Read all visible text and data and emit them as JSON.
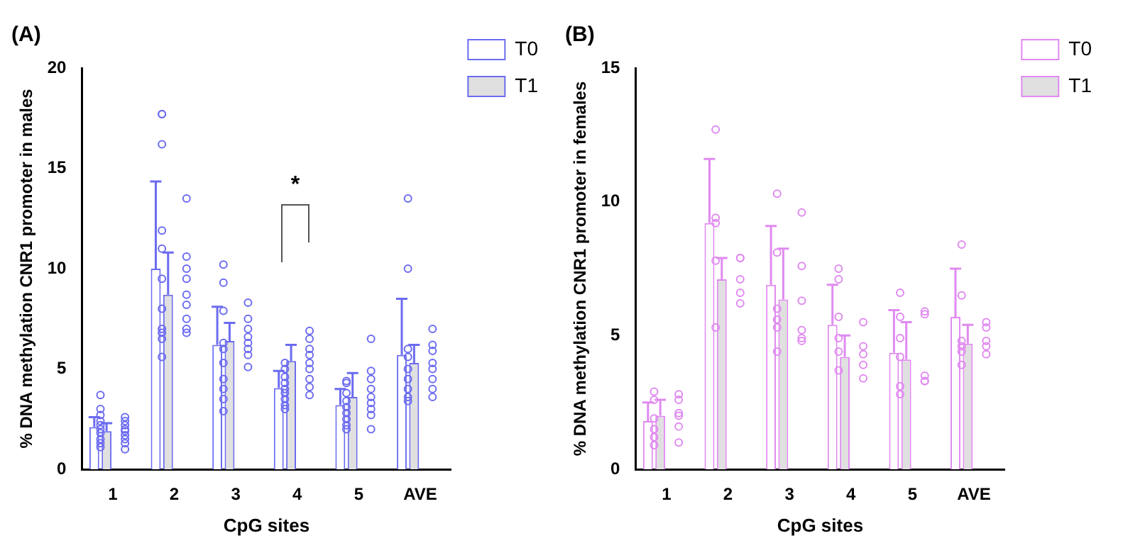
{
  "chart_data": [
    {
      "type": "bar",
      "title": "(A)",
      "xlabel": "CpG sites",
      "ylabel": "% DNA methylation CNR1 promoter in males",
      "categories": [
        "1",
        "2",
        "3",
        "4",
        "5",
        "AVE"
      ],
      "ylim": [
        0,
        20
      ],
      "yticks": [
        0,
        5,
        10,
        15,
        20
      ],
      "legend": "right",
      "annotations": [
        "*"
      ],
      "series": [
        {
          "name": "T0",
          "color": "#ffffff",
          "values": [
            2.1,
            10.0,
            6.2,
            4.05,
            3.2,
            5.7
          ],
          "errors": [
            [
              2.1,
              2.6
            ],
            [
              10.0,
              14.35
            ],
            [
              6.2,
              8.1
            ],
            [
              4.05,
              4.9
            ],
            [
              3.2,
              4.0
            ],
            [
              5.7,
              8.5
            ]
          ]
        },
        {
          "name": "T1",
          "color": "#e0e0e0",
          "values": [
            1.9,
            8.7,
            6.4,
            5.4,
            3.6,
            5.3
          ],
          "errors": [
            [
              1.9,
              2.3
            ],
            [
              8.7,
              10.8
            ],
            [
              6.4,
              7.3
            ],
            [
              5.4,
              6.2
            ],
            [
              3.6,
              4.8
            ],
            [
              5.3,
              6.2
            ]
          ]
        },
        {
          "type": "scatter",
          "color": "#6b6bf0",
          "marker": "circle",
          "x": [
            "1",
            "1",
            "1",
            "1",
            "1",
            "1",
            "1",
            "1",
            "1",
            "1",
            "2",
            "2",
            "2",
            "2",
            "2",
            "2",
            "2",
            "2",
            "2",
            "2",
            "2",
            "3",
            "3",
            "3",
            "3",
            "3",
            "3",
            "3",
            "3",
            "3",
            "3",
            "4",
            "4",
            "4",
            "4",
            "4",
            "4",
            "4",
            "4",
            "4",
            "5",
            "5",
            "5",
            "5",
            "5",
            "5",
            "5",
            "5",
            "5",
            "AVE",
            "AVE",
            "AVE",
            "AVE",
            "AVE",
            "AVE",
            "AVE",
            "AVE",
            "AVE"
          ],
          "values": [
            3.7,
            3.0,
            2.7,
            2.4,
            2.2,
            2.0,
            1.8,
            1.5,
            1.3,
            1.1,
            17.7,
            17.7,
            16.2,
            11.9,
            11.0,
            9.5,
            8.0,
            7.0,
            6.8,
            6.5,
            5.6,
            10.2,
            9.3,
            7.9,
            6.3,
            6.0,
            5.3,
            4.5,
            4.0,
            3.5,
            2.9,
            5.3,
            5.0,
            4.6,
            4.3,
            4.0,
            3.8,
            3.5,
            3.2,
            3.0,
            4.4,
            4.3,
            3.8,
            3.4,
            3.1,
            2.8,
            2.5,
            2.2,
            2.0,
            13.5,
            10.0,
            6.0,
            5.6,
            5.0,
            4.5,
            4.0,
            3.6,
            3.4
          ]
        },
        {
          "type": "scatter",
          "color": "#6b6bf0",
          "marker": "circle",
          "x": [
            "1",
            "1",
            "1",
            "1",
            "1",
            "1",
            "1",
            "1",
            "1",
            "2",
            "2",
            "2",
            "2",
            "2",
            "2",
            "2",
            "2",
            "2",
            "3",
            "3",
            "3",
            "3",
            "3",
            "3",
            "3",
            "3",
            "4",
            "4",
            "4",
            "4",
            "4",
            "4",
            "4",
            "4",
            "4",
            "5",
            "5",
            "5",
            "5",
            "5",
            "5",
            "5",
            "5",
            "5",
            "AVE",
            "AVE",
            "AVE",
            "AVE",
            "AVE",
            "AVE",
            "AVE",
            "AVE"
          ],
          "values": [
            2.6,
            2.4,
            2.2,
            2.0,
            1.9,
            1.7,
            1.5,
            1.3,
            1.0,
            13.5,
            10.6,
            10.0,
            9.5,
            8.7,
            8.2,
            7.5,
            7.0,
            6.8,
            8.3,
            7.5,
            7.0,
            6.6,
            6.3,
            6.0,
            5.7,
            5.1,
            6.9,
            6.5,
            6.0,
            5.7,
            5.3,
            5.0,
            4.5,
            4.1,
            3.7,
            6.5,
            4.9,
            4.5,
            4.0,
            3.6,
            3.3,
            3.0,
            2.7,
            2.0,
            7.0,
            6.2,
            5.9,
            5.3,
            5.0,
            4.5,
            4.0,
            3.6
          ]
        }
      ]
    },
    {
      "type": "bar",
      "title": "(B)",
      "xlabel": "CpG sites",
      "ylabel": "% DNA methylation CNR1 promoter in females",
      "categories": [
        "1",
        "2",
        "3",
        "4",
        "5",
        "AVE"
      ],
      "ylim": [
        0,
        15
      ],
      "yticks": [
        0,
        5,
        10,
        15
      ],
      "legend": "right",
      "series": [
        {
          "name": "T0",
          "color": "#ffffff",
          "values": [
            1.8,
            9.2,
            6.9,
            5.4,
            4.35,
            5.7
          ],
          "errors": [
            [
              1.8,
              2.5
            ],
            [
              9.2,
              11.6
            ],
            [
              6.9,
              9.1
            ],
            [
              5.4,
              6.9
            ],
            [
              4.35,
              5.95
            ],
            [
              5.7,
              7.5
            ]
          ]
        },
        {
          "name": "T1",
          "color": "#e0e0e0",
          "values": [
            2.0,
            7.1,
            6.35,
            4.2,
            4.1,
            4.7
          ],
          "errors": [
            [
              2.0,
              2.6
            ],
            [
              7.1,
              7.9
            ],
            [
              6.35,
              8.25
            ],
            [
              4.2,
              5.0
            ],
            [
              4.1,
              5.5
            ],
            [
              4.7,
              5.4
            ]
          ]
        },
        {
          "type": "scatter",
          "color": "#e08af0",
          "marker": "circle",
          "x": [
            "1",
            "1",
            "1",
            "1",
            "1",
            "1",
            "2",
            "2",
            "2",
            "2",
            "2",
            "3",
            "3",
            "3",
            "3",
            "3",
            "3",
            "4",
            "4",
            "4",
            "4",
            "4",
            "4",
            "5",
            "5",
            "5",
            "5",
            "5",
            "5",
            "AVE",
            "AVE",
            "AVE",
            "AVE",
            "AVE",
            "AVE"
          ],
          "values": [
            2.9,
            2.6,
            1.9,
            1.5,
            1.2,
            0.9,
            12.7,
            9.4,
            9.2,
            7.8,
            5.3,
            10.3,
            8.1,
            6.0,
            5.6,
            5.3,
            4.4,
            7.5,
            7.1,
            5.7,
            4.9,
            4.4,
            3.7,
            6.6,
            5.7,
            4.9,
            4.2,
            3.1,
            2.8,
            8.4,
            6.5,
            4.8,
            4.6,
            4.4,
            3.9
          ]
        },
        {
          "type": "scatter",
          "color": "#e08af0",
          "marker": "circle",
          "x": [
            "1",
            "1",
            "1",
            "1",
            "1",
            "1",
            "2",
            "2",
            "2",
            "2",
            "2",
            "3",
            "3",
            "3",
            "3",
            "3",
            "3",
            "4",
            "4",
            "4",
            "4",
            "4",
            "5",
            "5",
            "5",
            "5",
            "5",
            "AVE",
            "AVE",
            "AVE",
            "AVE",
            "AVE"
          ],
          "values": [
            2.8,
            2.6,
            2.1,
            2.0,
            1.6,
            1.0,
            7.9,
            7.9,
            7.1,
            6.6,
            6.2,
            9.6,
            7.6,
            6.3,
            5.2,
            4.9,
            4.8,
            5.5,
            4.6,
            4.3,
            3.9,
            3.4,
            5.9,
            5.8,
            3.5,
            3.3,
            3.3,
            5.5,
            5.3,
            4.8,
            4.6,
            4.3
          ]
        }
      ]
    }
  ]
}
